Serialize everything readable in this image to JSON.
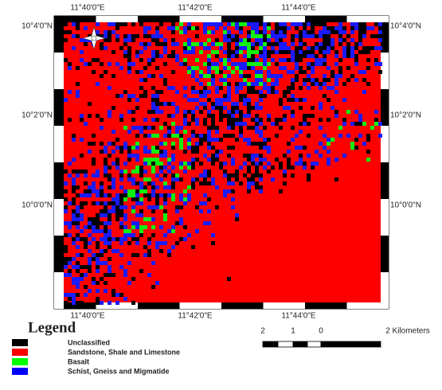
{
  "map": {
    "top_labels": [
      "11°40'0\"E",
      "11°42'0\"E",
      "11°44'0\"E"
    ],
    "bottom_labels": [
      "11°40'0\"E",
      "11°42'0\"E",
      "11°44'0\"E"
    ],
    "left_labels": [
      "10°4'0\"N",
      "10°2'0\"N",
      "10°0'0\"N"
    ],
    "right_labels": [
      "10°4'0\"N",
      "10°2'0\"N",
      "10°0'0\"N"
    ]
  },
  "legend": {
    "title": "Legend",
    "items": [
      {
        "label": "Unclassified",
        "color": "#000000"
      },
      {
        "label": "Sandstone, Shale and Limestone",
        "color": "#ff0000"
      },
      {
        "label": "Basalt",
        "color": "#00ff00"
      },
      {
        "label": "Schist, Gneiss and Migmatide",
        "color": "#0000ff"
      }
    ]
  },
  "scale_bar": {
    "labels": [
      "2",
      "1",
      "0",
      "2 Kilometers"
    ]
  }
}
